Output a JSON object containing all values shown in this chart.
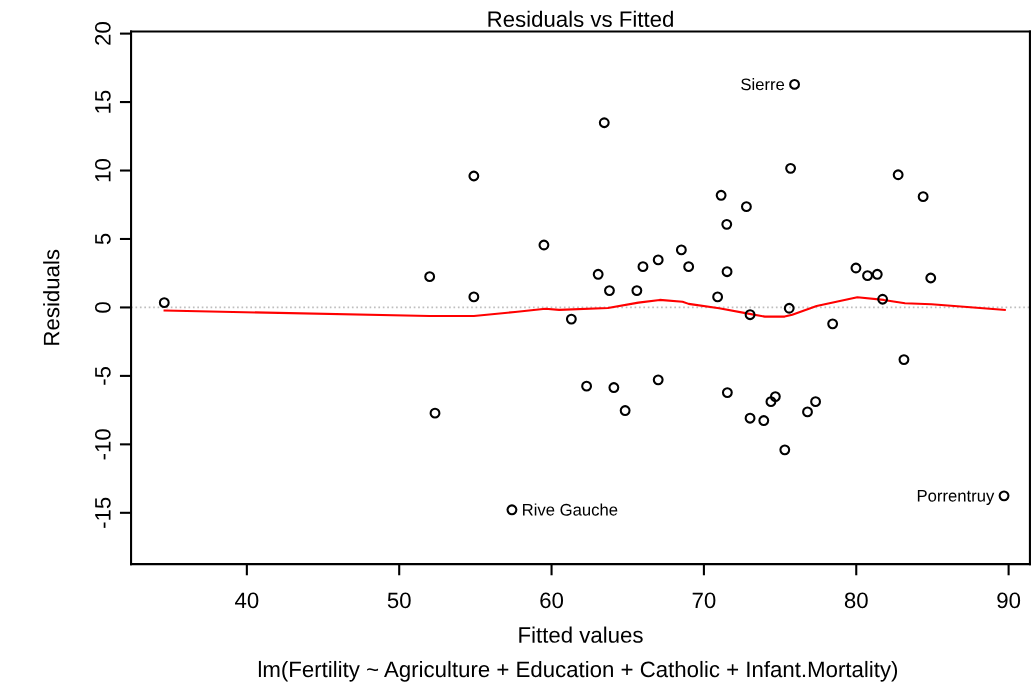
{
  "chart_data": {
    "type": "scatter",
    "title": "Residuals vs Fitted",
    "subtitle": "lm(Fertility ~ Agriculture + Education + Catholic + Infant.Mortality)",
    "xlabel": "Fitted values",
    "ylabel": "Residuals",
    "xlim": [
      32.4,
      91.4
    ],
    "ylim": [
      -18.75,
      20.16
    ],
    "xticks": [
      40,
      50,
      60,
      70,
      80,
      90
    ],
    "yticks": [
      -15,
      -10,
      -5,
      0,
      5,
      10,
      15,
      20
    ],
    "series": [
      {
        "color": "#000000",
        "marker": "circle",
        "x": [
          34.58,
          52.0,
          54.9,
          54.9,
          59.5,
          61.3,
          63.46,
          75.95,
          63.06,
          63.8,
          66.0,
          67.0,
          65.6,
          68.52,
          69.0,
          71.13,
          72.79,
          71.5,
          71.52,
          70.9,
          75.69,
          73.03,
          75.6,
          82.75,
          84.39,
          79.98,
          80.74,
          81.38,
          84.89,
          81.73,
          78.45,
          83.13,
          62.3,
          64.09,
          64.83,
          67.0,
          71.54,
          74.69,
          74.4,
          77.33,
          76.8,
          73.03,
          73.93,
          75.31,
          89.7,
          52.35,
          57.4
        ],
        "values": [
          0.35,
          2.25,
          9.6,
          0.77,
          4.56,
          -0.85,
          13.49,
          16.29,
          2.42,
          1.23,
          2.98,
          3.47,
          1.23,
          4.2,
          2.98,
          8.19,
          7.36,
          6.07,
          2.61,
          0.77,
          10.16,
          -0.53,
          -0.06,
          9.69,
          8.09,
          2.88,
          2.32,
          2.42,
          2.15,
          0.6,
          -1.2,
          -3.81,
          -5.75,
          -5.85,
          -7.53,
          -5.29,
          -6.22,
          -6.51,
          -6.88,
          -6.88,
          -7.63,
          -8.09,
          -8.26,
          -10.4,
          -13.76,
          -7.72,
          -14.78
        ]
      },
      {
        "type": "line",
        "color": "#ff0000",
        "marker": "none",
        "x": [
          34.6,
          52.0,
          54.9,
          57.6,
          59.6,
          60.5,
          63.7,
          65.7,
          67.1,
          68.6,
          69.0,
          71.0,
          73.0,
          74.0,
          75.3,
          75.8,
          77.4,
          80.07,
          81.8,
          83.2,
          84.94,
          89.75
        ],
        "values": [
          -0.23,
          -0.62,
          -0.62,
          -0.33,
          -0.09,
          -0.18,
          -0.04,
          0.35,
          0.55,
          0.42,
          0.26,
          -0.06,
          -0.47,
          -0.67,
          -0.67,
          -0.53,
          0.11,
          0.74,
          0.55,
          0.31,
          0.23,
          -0.18
        ]
      }
    ],
    "ref_lines": [
      {
        "axis": "y",
        "value": 0,
        "color": "#bebebe",
        "line_style": "dotted"
      }
    ],
    "annotations": [
      {
        "text": "Sierre",
        "x": 75.95,
        "y": 16.29
      },
      {
        "text": "Rive Gauche",
        "x": 57.4,
        "y": -14.78
      },
      {
        "text": "Porrentruy",
        "x": 89.7,
        "y": -13.76
      }
    ]
  }
}
